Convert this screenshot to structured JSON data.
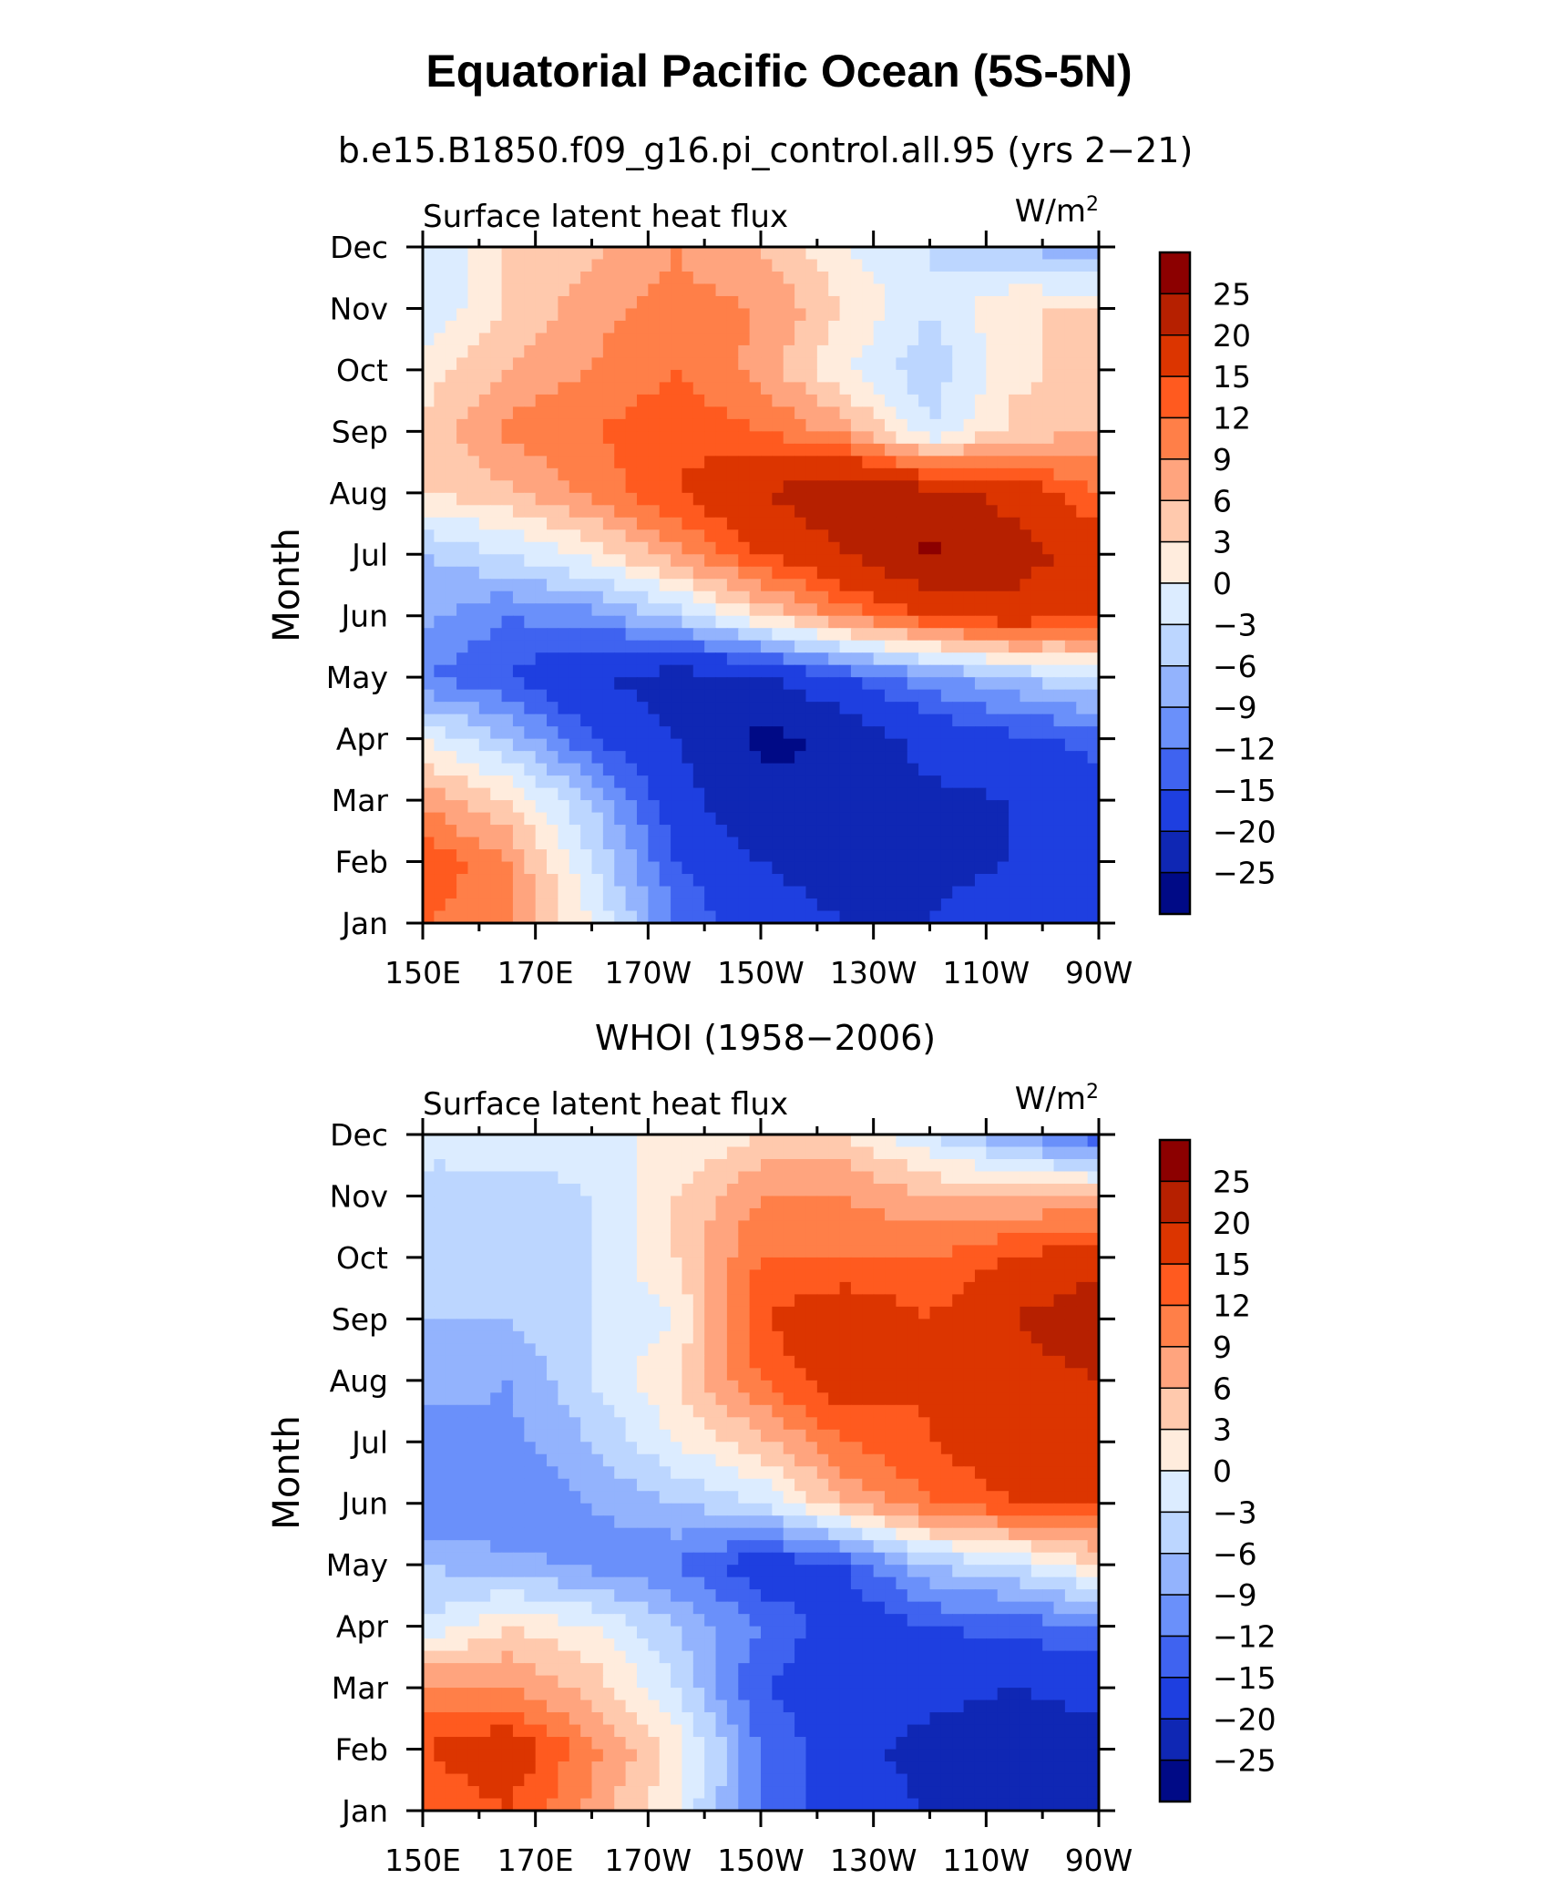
{
  "figure": {
    "title": "Equatorial Pacific Ocean (5S-5N)"
  },
  "chart_data": [
    {
      "type": "heatmap",
      "title": "b.e15.B1850.f09_g16.pi_control.all.95 (yrs 2−21)",
      "left_string": "Surface latent heat flux",
      "units": "W/m",
      "units_sup": "2",
      "xlabel": "",
      "ylabel": "Month",
      "x_ticks": [
        "150E",
        "170E",
        "170W",
        "150W",
        "130W",
        "110W",
        "90W"
      ],
      "y_ticks": [
        "Jan",
        "Feb",
        "Mar",
        "Apr",
        "May",
        "Jun",
        "Jul",
        "Aug",
        "Sep",
        "Oct",
        "Nov",
        "Dec"
      ],
      "x_lon_range": [
        150,
        270
      ],
      "colorbar_levels": [
        "25",
        "20",
        "15",
        "12",
        "9",
        "6",
        "3",
        "0",
        "−3",
        "−6",
        "−9",
        "−12",
        "−15",
        "−20",
        "−25"
      ],
      "colors": [
        "#8c0000",
        "#b62000",
        "#dc3500",
        "#ff5a1f",
        "#ff7f48",
        "#ffa47e",
        "#ffc9ad",
        "#ffecdd",
        "#dcecff",
        "#bcd6ff",
        "#93b3fd",
        "#6a90fa",
        "#3f63f0",
        "#1e3fe0",
        "#0f27b4",
        "#000a86"
      ],
      "grid_lon": [
        150,
        165,
        180,
        195,
        210,
        225,
        240,
        255,
        270
      ],
      "z": [
        [
          12,
          9,
          0,
          -12,
          -18,
          -20,
          -20,
          -18,
          -15
        ],
        [
          15,
          9,
          -3,
          -15,
          -20,
          -22,
          -21,
          -20,
          -16
        ],
        [
          8,
          3,
          -6,
          -18,
          -24,
          -25,
          -21,
          -20,
          -16
        ],
        [
          0,
          -6,
          -15,
          -20,
          -26,
          -24,
          -18,
          -16,
          -14
        ],
        [
          -12,
          -15,
          -20,
          -22,
          -21,
          -15,
          -10,
          -6,
          -3
        ],
        [
          -8,
          -12,
          -10,
          -5,
          3,
          10,
          15,
          18,
          15
        ],
        [
          -6,
          -3,
          1,
          8,
          15,
          20,
          26,
          22,
          18
        ],
        [
          3,
          5,
          10,
          15,
          20,
          24,
          22,
          18,
          12
        ],
        [
          3,
          10,
          12,
          14,
          12,
          8,
          -3,
          4,
          6
        ],
        [
          2,
          6,
          9,
          12,
          8,
          0,
          -5,
          2,
          5
        ],
        [
          -3,
          3,
          8,
          10,
          9,
          3,
          -3,
          3,
          3
        ],
        [
          -3,
          3,
          5,
          9,
          6,
          0,
          -3,
          -6,
          -9
        ]
      ]
    },
    {
      "type": "heatmap",
      "title": "WHOI (1958−2006)",
      "left_string": "Surface latent heat flux",
      "units": "W/m",
      "units_sup": "2",
      "xlabel": "",
      "ylabel": "Month",
      "x_ticks": [
        "150E",
        "170E",
        "170W",
        "150W",
        "130W",
        "110W",
        "90W"
      ],
      "y_ticks": [
        "Jan",
        "Feb",
        "Mar",
        "Apr",
        "May",
        "Jun",
        "Jul",
        "Aug",
        "Sep",
        "Oct",
        "Nov",
        "Dec"
      ],
      "x_lon_range": [
        150,
        270
      ],
      "colorbar_levels": [
        "25",
        "20",
        "15",
        "12",
        "9",
        "6",
        "3",
        "0",
        "−3",
        "−6",
        "−9",
        "−12",
        "−15",
        "−20",
        "−25"
      ],
      "colors": [
        "#8c0000",
        "#b62000",
        "#dc3500",
        "#ff5a1f",
        "#ff7f48",
        "#ffa47e",
        "#ffc9ad",
        "#ffecdd",
        "#dcecff",
        "#bcd6ff",
        "#93b3fd",
        "#6a90fa",
        "#3f63f0",
        "#1e3fe0",
        "#0f27b4",
        "#000a86"
      ],
      "grid_lon": [
        150,
        165,
        180,
        195,
        210,
        225,
        240,
        255,
        270
      ],
      "z": [
        [
          12,
          15,
          8,
          0,
          -12,
          -18,
          -20,
          -22,
          -24
        ],
        [
          15,
          18,
          10,
          2,
          -12,
          -18,
          -22,
          -24,
          -22
        ],
        [
          10,
          9,
          5,
          -3,
          -15,
          -18,
          -18,
          -20,
          -18
        ],
        [
          -3,
          3,
          0,
          -6,
          -12,
          -18,
          -15,
          -14,
          -12
        ],
        [
          -6,
          -8,
          -10,
          -12,
          -18,
          -15,
          -6,
          -3,
          3
        ],
        [
          -12,
          -12,
          -9,
          -6,
          -3,
          6,
          12,
          15,
          15
        ],
        [
          -12,
          -10,
          -6,
          0,
          5,
          12,
          15,
          18,
          18
        ],
        [
          -6,
          -9,
          -3,
          3,
          12,
          18,
          15,
          18,
          20
        ],
        [
          -6,
          -6,
          -3,
          0,
          15,
          18,
          15,
          20,
          24
        ],
        [
          -3,
          -6,
          -3,
          3,
          12,
          12,
          12,
          15,
          18
        ],
        [
          -3,
          -6,
          -3,
          3,
          9,
          9,
          6,
          6,
          6
        ],
        [
          -3,
          0,
          0,
          0,
          3,
          3,
          -3,
          -9,
          -15
        ]
      ]
    }
  ]
}
